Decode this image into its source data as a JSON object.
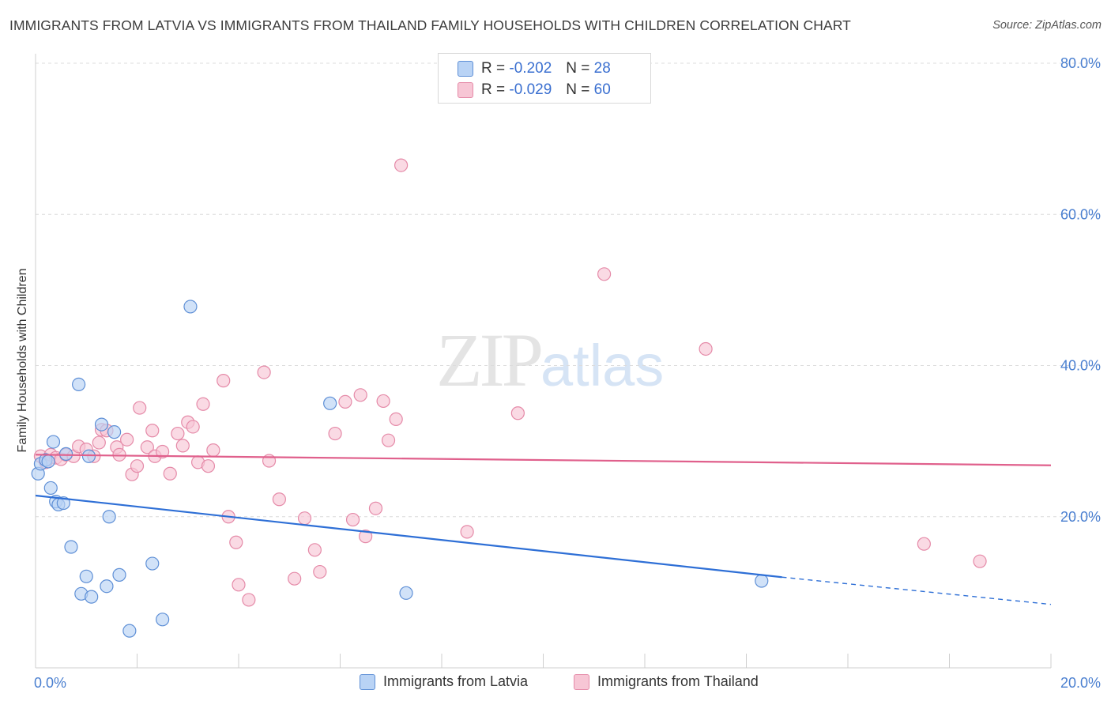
{
  "title": "IMMIGRANTS FROM LATVIA VS IMMIGRANTS FROM THAILAND FAMILY HOUSEHOLDS WITH CHILDREN CORRELATION CHART",
  "source": "Source: ZipAtlas.com",
  "watermark": {
    "zip": "ZIP",
    "atlas": "atlas"
  },
  "legend": {
    "latvia": {
      "r_label": "R =",
      "r_value": "-0.202",
      "n_label": "N =",
      "n_value": "28"
    },
    "thailand": {
      "r_label": "R =",
      "r_value": "-0.029",
      "n_label": "N =",
      "n_value": "60"
    }
  },
  "colors": {
    "latvia_fill": "#b9d3f5",
    "latvia_stroke": "#5e8fd6",
    "latvia_line": "#2e6fd6",
    "thailand_fill": "#f7c6d5",
    "thailand_stroke": "#e58aa8",
    "thailand_line": "#e0608c",
    "axis_label": "#4a7fd0",
    "grid": "#dcdcdc"
  },
  "chart_data": {
    "type": "scatter",
    "title": "IMMIGRANTS FROM LATVIA VS IMMIGRANTS FROM THAILAND FAMILY HOUSEHOLDS WITH CHILDREN CORRELATION CHART",
    "xlabel": "",
    "ylabel": "Family Households with Children",
    "xlim": [
      0,
      20
    ],
    "ylim": [
      0,
      80
    ],
    "x_tick_labels": [
      "0.0%",
      "20.0%"
    ],
    "y_ticks": [
      20,
      40,
      60,
      80
    ],
    "y_tick_labels": [
      "20.0%",
      "40.0%",
      "60.0%",
      "80.0%"
    ],
    "grid": true,
    "legend_position": "top-center",
    "series": [
      {
        "name": "Immigrants from Latvia",
        "r": -0.202,
        "n": 28,
        "trend": {
          "x0": 0,
          "y0": 22.8,
          "x1": 14.7,
          "y1": 12.0,
          "dashed_to_x": 20,
          "dashed_to_y": 8.4
        },
        "points": [
          [
            0.05,
            25.7
          ],
          [
            0.1,
            27.0
          ],
          [
            0.2,
            27.5
          ],
          [
            0.3,
            23.8
          ],
          [
            0.35,
            29.9
          ],
          [
            0.4,
            22.0
          ],
          [
            0.45,
            21.6
          ],
          [
            0.55,
            21.8
          ],
          [
            0.6,
            28.3
          ],
          [
            0.7,
            16.0
          ],
          [
            0.85,
            37.5
          ],
          [
            0.9,
            9.8
          ],
          [
            1.0,
            12.1
          ],
          [
            1.05,
            28.0
          ],
          [
            1.1,
            9.4
          ],
          [
            1.3,
            32.2
          ],
          [
            1.4,
            10.8
          ],
          [
            1.45,
            20.0
          ],
          [
            1.55,
            31.2
          ],
          [
            1.65,
            12.3
          ],
          [
            1.85,
            4.9
          ],
          [
            2.3,
            13.8
          ],
          [
            2.5,
            6.4
          ],
          [
            3.05,
            47.8
          ],
          [
            5.8,
            35.0
          ],
          [
            7.3,
            9.9
          ],
          [
            14.3,
            11.5
          ],
          [
            0.25,
            27.3
          ]
        ]
      },
      {
        "name": "Immigrants from Thailand",
        "r": -0.029,
        "n": 60,
        "trend": {
          "x0": 0,
          "y0": 28.2,
          "x1": 20,
          "y1": 26.8
        },
        "points": [
          [
            0.1,
            28.0
          ],
          [
            0.2,
            27.2
          ],
          [
            0.3,
            28.2
          ],
          [
            0.4,
            27.8
          ],
          [
            0.5,
            27.6
          ],
          [
            0.6,
            28.2
          ],
          [
            0.75,
            28.0
          ],
          [
            0.85,
            29.3
          ],
          [
            1.0,
            28.9
          ],
          [
            1.15,
            28.0
          ],
          [
            1.25,
            29.8
          ],
          [
            1.3,
            31.5
          ],
          [
            1.4,
            31.4
          ],
          [
            1.6,
            29.2
          ],
          [
            1.65,
            28.2
          ],
          [
            1.8,
            30.2
          ],
          [
            1.9,
            25.6
          ],
          [
            2.0,
            26.7
          ],
          [
            2.05,
            34.4
          ],
          [
            2.2,
            29.2
          ],
          [
            2.3,
            31.4
          ],
          [
            2.35,
            28.0
          ],
          [
            2.5,
            28.6
          ],
          [
            2.65,
            25.7
          ],
          [
            2.8,
            31.0
          ],
          [
            2.9,
            29.4
          ],
          [
            3.0,
            32.5
          ],
          [
            3.1,
            31.9
          ],
          [
            3.2,
            27.2
          ],
          [
            3.3,
            34.9
          ],
          [
            3.4,
            26.7
          ],
          [
            3.5,
            28.8
          ],
          [
            3.7,
            38.0
          ],
          [
            3.8,
            20.0
          ],
          [
            3.95,
            16.6
          ],
          [
            4.0,
            11.0
          ],
          [
            4.2,
            9.0
          ],
          [
            4.5,
            39.1
          ],
          [
            4.6,
            27.4
          ],
          [
            4.8,
            22.3
          ],
          [
            5.1,
            11.8
          ],
          [
            5.3,
            19.8
          ],
          [
            5.5,
            15.6
          ],
          [
            5.6,
            12.7
          ],
          [
            5.9,
            31.0
          ],
          [
            6.1,
            35.2
          ],
          [
            6.25,
            19.6
          ],
          [
            6.4,
            36.1
          ],
          [
            6.5,
            17.4
          ],
          [
            6.7,
            21.1
          ],
          [
            6.85,
            35.3
          ],
          [
            6.95,
            30.1
          ],
          [
            7.1,
            32.9
          ],
          [
            7.2,
            66.5
          ],
          [
            8.5,
            18.0
          ],
          [
            9.5,
            33.7
          ],
          [
            11.2,
            52.1
          ],
          [
            13.2,
            42.2
          ],
          [
            17.5,
            16.4
          ],
          [
            18.6,
            14.1
          ]
        ]
      }
    ]
  },
  "bottom_legend": {
    "latvia": "Immigrants from Latvia",
    "thailand": "Immigrants from Thailand"
  }
}
